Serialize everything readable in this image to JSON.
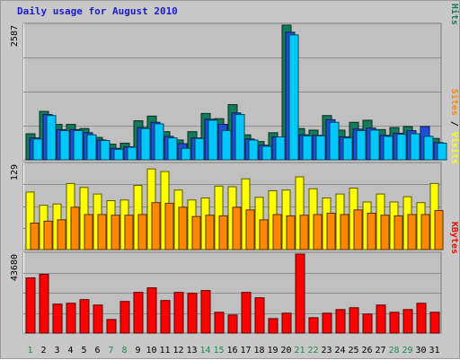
{
  "chart_data": {
    "type": "bar",
    "title": "Daily usage for August 2010",
    "categories": [
      "1",
      "2",
      "3",
      "4",
      "5",
      "6",
      "7",
      "8",
      "9",
      "10",
      "11",
      "12",
      "13",
      "14",
      "15",
      "16",
      "17",
      "18",
      "19",
      "20",
      "21",
      "22",
      "23",
      "24",
      "25",
      "26",
      "27",
      "28",
      "29",
      "30",
      "31"
    ],
    "weekend_days": [
      "1",
      "7",
      "8",
      "14",
      "15",
      "21",
      "22",
      "28",
      "29"
    ],
    "panels": [
      {
        "max_label": "2587",
        "ymax": 2587,
        "legend": [
          {
            "text": "Pages",
            "color": "#00c8ff"
          },
          {
            "text": "Files",
            "color": "#1f4fd6"
          },
          {
            "text": "Hits",
            "color": "#157a5a"
          }
        ],
        "series": [
          {
            "name": "Hits",
            "color": "#157a5a",
            "values": [
              500,
              930,
              680,
              680,
              600,
              430,
              300,
              320,
              750,
              840,
              540,
              380,
              540,
              890,
              790,
              1060,
              480,
              350,
              520,
              2587,
              600,
              570,
              850,
              570,
              720,
              760,
              580,
              620,
              640,
              490,
              410
            ]
          },
          {
            "name": "Files",
            "color": "#1f4fd6",
            "values": [
              420,
              870,
              580,
              580,
              520,
              380,
              220,
              250,
              620,
              720,
              450,
              310,
              420,
              780,
              680,
              900,
              400,
              280,
              440,
              2450,
              480,
              470,
              770,
              440,
              590,
              610,
              470,
              510,
              560,
              640,
              330
            ]
          },
          {
            "name": "Pages",
            "color": "#00c8ff",
            "values": [
              400,
              850,
              560,
              560,
              480,
              370,
              200,
              240,
              600,
              690,
              420,
              220,
              410,
              760,
              560,
              870,
              380,
              260,
              440,
              2400,
              460,
              460,
              720,
              420,
              560,
              570,
              450,
              490,
              500,
              450,
              320
            ]
          }
        ]
      },
      {
        "max_label": "129",
        "ymax": 129,
        "legend": [
          {
            "text": "Sites",
            "color": "#ff8800"
          },
          {
            "text": "Visits",
            "color": "#ffff00"
          }
        ],
        "series": [
          {
            "name": "Visits",
            "color": "#ffff00",
            "values": [
              87,
              67,
              69,
              100,
              94,
              84,
              74,
              75,
              97,
              122,
              118,
              90,
              75,
              78,
              96,
              95,
              107,
              79,
              89,
              90,
              110,
              92,
              78,
              84,
              93,
              72,
              84,
              72,
              80,
              71,
              100
            ]
          },
          {
            "name": "Sites",
            "color": "#ff8800",
            "values": [
              40,
              43,
              45,
              64,
              53,
              53,
              52,
              52,
              53,
              71,
              70,
              64,
              50,
              52,
              51,
              64,
              60,
              45,
              53,
              51,
              52,
              53,
              55,
              53,
              60,
              55,
              52,
              51,
              53,
              53,
              59
            ]
          }
        ]
      },
      {
        "max_label": "43680",
        "ymax": 43680,
        "legend": [
          {
            "text": "KBytes",
            "color": "#ff0000"
          }
        ],
        "series": [
          {
            "name": "KBytes",
            "color": "#ff0000",
            "values": [
              30500,
              32500,
              16000,
              16500,
              18500,
              15500,
              7500,
              17500,
              22500,
              25000,
              18000,
              22500,
              22000,
              23500,
              11500,
              10000,
              22500,
              19500,
              8000,
              11000,
              43680,
              8500,
              11000,
              13000,
              14000,
              10500,
              15500,
              11500,
              13000,
              16500,
              11500
            ]
          }
        ]
      }
    ]
  }
}
